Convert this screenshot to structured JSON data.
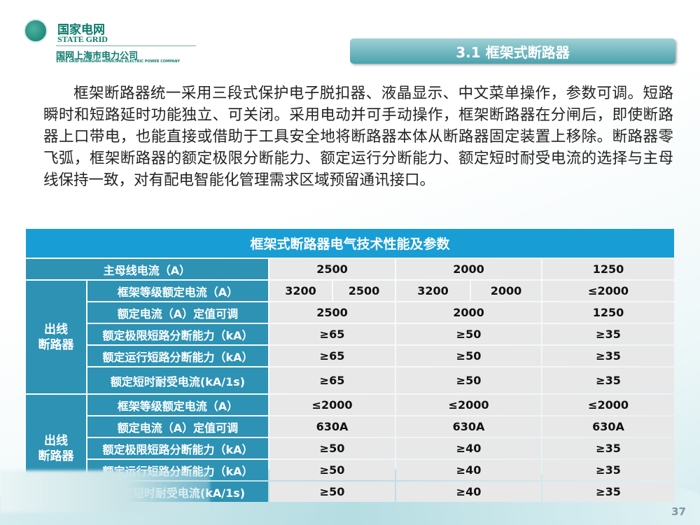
{
  "logo": {
    "cn": "国家电网",
    "en": "STATE GRID",
    "company_cn": "国网上海市电力公司",
    "company_en": "STATE GRID SHANGHAI MUNICIPAL ELECTRIC POWER COMPANY"
  },
  "slide_title": "3.1 框架式断路器",
  "paragraph": "框架断路器统一采用三段式保护电子脱扣器、液晶显示、中文菜单操作，参数可调。短路瞬时和短路延时功能独立、可关闭。采用电动并可手动操作，框架断路器在分闸后，即使断路器上口带电，也能直接或借助于工具安全地将断路器本体从断路器固定装置上移除。断路器零飞弧，框架断路器的额定极限分断能力、额定运行分断能力、额定短时耐受电流的选择与主母线保持一致，对有配电智能化管理需求区域预留通讯接口。",
  "table": {
    "title": "框架式断路器电气技术性能及参数",
    "main_bus_label": "主母线电流（A）",
    "main_bus": [
      "2500",
      "2000",
      "1250"
    ],
    "group1": "出线\n断路器",
    "group1_rows": [
      {
        "label": "框架等级额定电流（A）",
        "values": [
          "3200",
          "2500",
          "3200",
          "2000",
          "≤2000"
        ]
      },
      {
        "label": "额定电流（A）定值可调",
        "values": [
          "2500",
          "2000",
          "1250"
        ]
      },
      {
        "label": "额定极限短路分断能力（kA）",
        "values": [
          "≥65",
          "≥50",
          "≥35"
        ]
      },
      {
        "label": "额定运行短路分断能力（kA）",
        "values": [
          "≥65",
          "≥50",
          "≥35"
        ]
      },
      {
        "label": "额定短时耐受电流(kA/1s)",
        "values": [
          "≥65",
          "≥50",
          "≥35"
        ]
      }
    ],
    "group2": "出线\n断路器",
    "group2_rows": [
      {
        "label": "框架等级额定电流（A）",
        "values": [
          "≤2000",
          "≤2000",
          "≤2000"
        ]
      },
      {
        "label": "额定电流（A）定值可调",
        "values": [
          "630A",
          "630A",
          "630A"
        ]
      },
      {
        "label": "额定极限短路分断能力（kA）",
        "values": [
          "≥50",
          "≥40",
          "≥35"
        ]
      },
      {
        "label": "额定运行短路分断能力（kA）",
        "values": [
          "≥50",
          "≥40",
          "≥35"
        ]
      },
      {
        "label": "额定短时耐受电流(kA/1s)",
        "values": [
          "≥50",
          "≥40",
          "≥35"
        ]
      }
    ]
  },
  "page_number": "37",
  "colors": {
    "header": "#199dd5",
    "label_cell": "#2d92b4",
    "value_cell": "#e8e8e8",
    "brand": "#0b7a6b"
  }
}
